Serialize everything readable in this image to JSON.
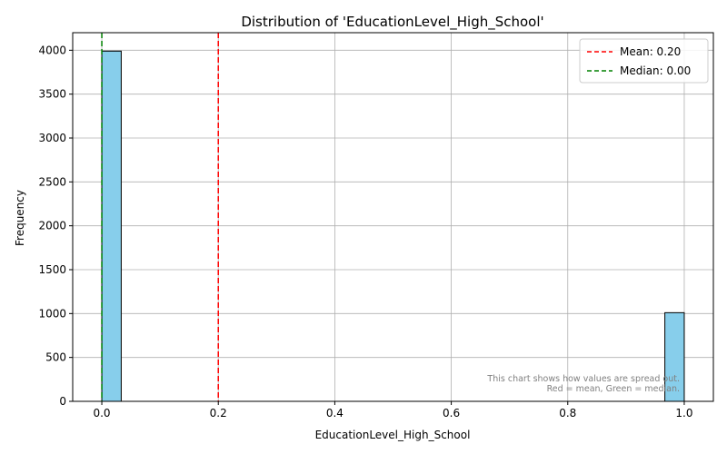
{
  "chart_data": {
    "type": "bar",
    "title": "Distribution of 'EducationLevel_High_School'",
    "xlabel": "EducationLevel_High_School",
    "ylabel": "Frequency",
    "xlim": [
      -0.05,
      1.05
    ],
    "ylim": [
      0,
      4200
    ],
    "xticks": [
      0.0,
      0.2,
      0.4,
      0.6,
      0.8,
      1.0
    ],
    "xtick_labels": [
      "0.0",
      "0.2",
      "0.4",
      "0.6",
      "0.8",
      "1.0"
    ],
    "yticks": [
      0,
      500,
      1000,
      1500,
      2000,
      2500,
      3000,
      3500,
      4000
    ],
    "ytick_labels": [
      "0",
      "500",
      "1000",
      "1500",
      "2000",
      "2500",
      "3000",
      "3500",
      "4000"
    ],
    "grid": true,
    "bins": [
      {
        "x0": 0.0,
        "x1": 0.0333,
        "count": 3990
      },
      {
        "x0": 0.9667,
        "x1": 1.0,
        "count": 1010
      }
    ],
    "bar_color": "#87CEEB",
    "bar_edge_color": "#000000",
    "reference_lines": [
      {
        "value": 0.2,
        "color": "#ff0000",
        "label": "Mean: 0.20"
      },
      {
        "value": 0.0,
        "color": "#008000",
        "label": "Median: 0.00"
      }
    ],
    "legend_position": "top-right",
    "annotation": [
      "This chart shows how values are spread out.",
      "Red = mean, Green = median."
    ]
  }
}
